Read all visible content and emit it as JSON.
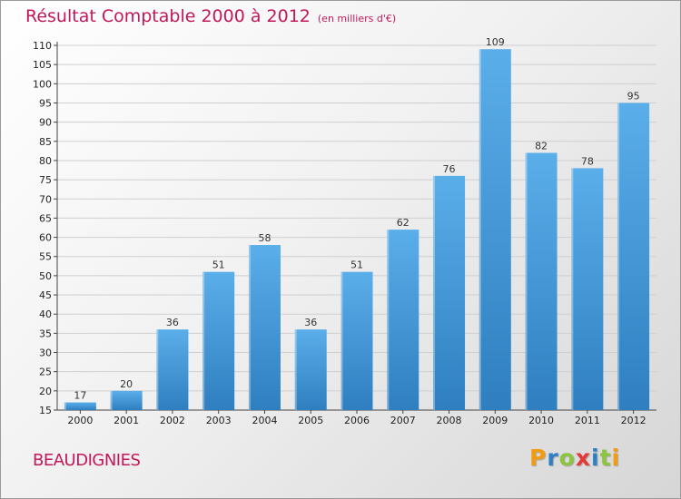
{
  "header": {
    "title": "Résultat Comptable 2000 à 2012",
    "unit_note": "(en milliers d'€)"
  },
  "commune": "BEAUDIGNIES",
  "brand": {
    "letters": [
      "P",
      "r",
      "o",
      "x",
      "i",
      "t",
      "i"
    ],
    "colors": [
      "#f39c12",
      "#2e7fc4",
      "#8cc63f",
      "#e53935",
      "#2e7fc4",
      "#8cc63f",
      "#f39c12"
    ]
  },
  "colors": {
    "bar_light": "#5aaee9",
    "bar_dark": "#2f7fc0",
    "accent": "#c2185b"
  },
  "chart_data": {
    "type": "bar",
    "title": "Résultat Comptable 2000 à 2012",
    "subtitle": "(en milliers d'€)",
    "xlabel": "",
    "ylabel": "",
    "categories": [
      "2000",
      "2001",
      "2002",
      "2003",
      "2004",
      "2005",
      "2006",
      "2007",
      "2008",
      "2009",
      "2010",
      "2011",
      "2012"
    ],
    "values": [
      17,
      20,
      36,
      51,
      58,
      36,
      51,
      62,
      76,
      109,
      82,
      78,
      95
    ],
    "ylim": [
      15,
      110
    ],
    "yticks": [
      15,
      20,
      25,
      30,
      35,
      40,
      45,
      50,
      55,
      60,
      65,
      70,
      75,
      80,
      85,
      90,
      95,
      100,
      105,
      110
    ],
    "grid": true
  }
}
